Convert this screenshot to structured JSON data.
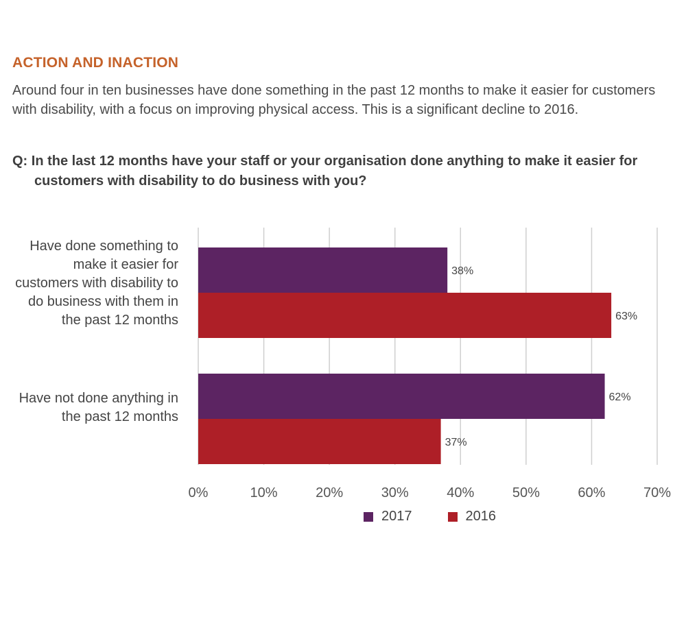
{
  "header": {
    "title": "ACTION AND INACTION",
    "intro": "Around four in ten businesses have done something in the past 12 months to make it easier for customers with disability, with a focus on improving physical access. This is a significant decline to 2016.",
    "question_prefix": "Q:",
    "question": "In the last 12 months have your staff or your organisation done anything to make it easier for customers with disability to do business with you?"
  },
  "chart_data": {
    "type": "bar",
    "orientation": "horizontal",
    "categories": [
      "Have done something to make it easier for customers with disability to do business with them in the past 12 months",
      "Have not done anything in the past 12 months"
    ],
    "series": [
      {
        "name": "2017",
        "values": [
          38,
          62
        ],
        "color": "#5c2462",
        "labels": [
          "38%",
          "62%"
        ]
      },
      {
        "name": "2016",
        "values": [
          63,
          37
        ],
        "color": "#ae1f27",
        "labels": [
          "63%",
          "37%"
        ]
      }
    ],
    "xlim": [
      0,
      70
    ],
    "xticks": [
      "0%",
      "10%",
      "20%",
      "30%",
      "40%",
      "50%",
      "60%",
      "70%"
    ],
    "grid": true,
    "legend_position": "bottom"
  }
}
